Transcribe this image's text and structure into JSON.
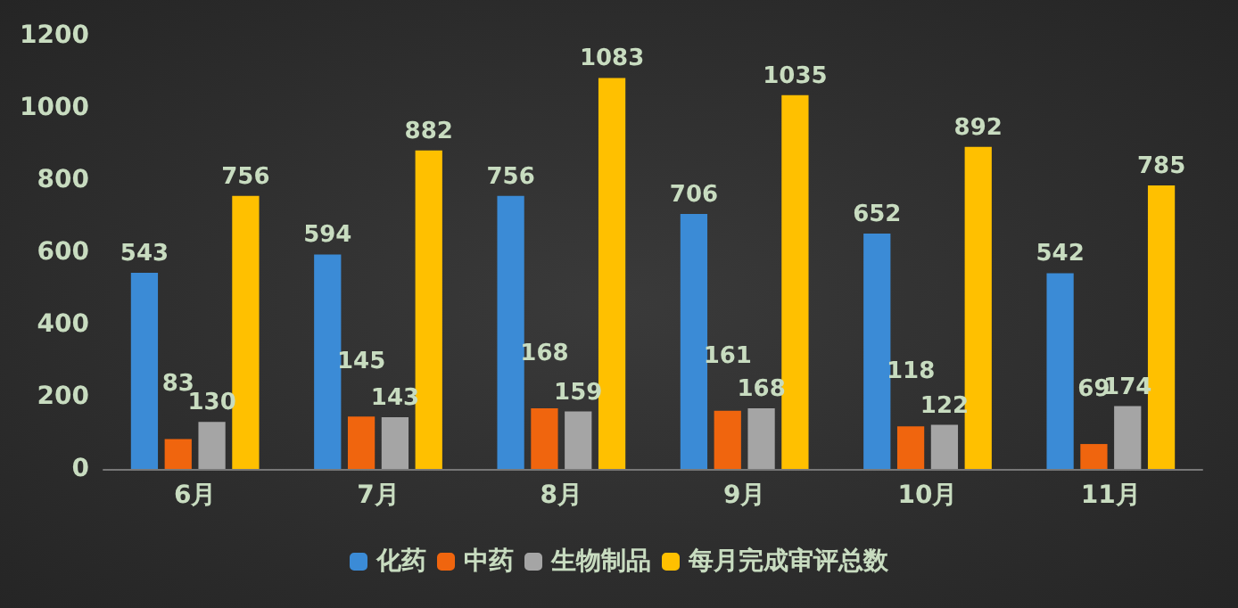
{
  "chart_data": {
    "type": "bar",
    "categories": [
      "6月",
      "7月",
      "8月",
      "9月",
      "10月",
      "11月"
    ],
    "series": [
      {
        "name": "化药",
        "color": "#3b8bd6",
        "values": [
          543,
          594,
          756,
          706,
          652,
          542
        ]
      },
      {
        "name": "中药",
        "color": "#f0650e",
        "values": [
          83,
          145,
          168,
          161,
          118,
          69
        ]
      },
      {
        "name": "生物制品",
        "color": "#a5a5a5",
        "values": [
          130,
          143,
          159,
          168,
          122,
          174
        ]
      },
      {
        "name": "每月完成审评总数",
        "color": "#ffc000",
        "values": [
          756,
          882,
          1083,
          1035,
          892,
          785
        ]
      }
    ],
    "ylim": [
      0,
      1200
    ],
    "yticks": [
      0,
      200,
      400,
      600,
      800,
      1000,
      1200
    ],
    "data_labels": true,
    "grid": false,
    "legend": "bottom"
  }
}
